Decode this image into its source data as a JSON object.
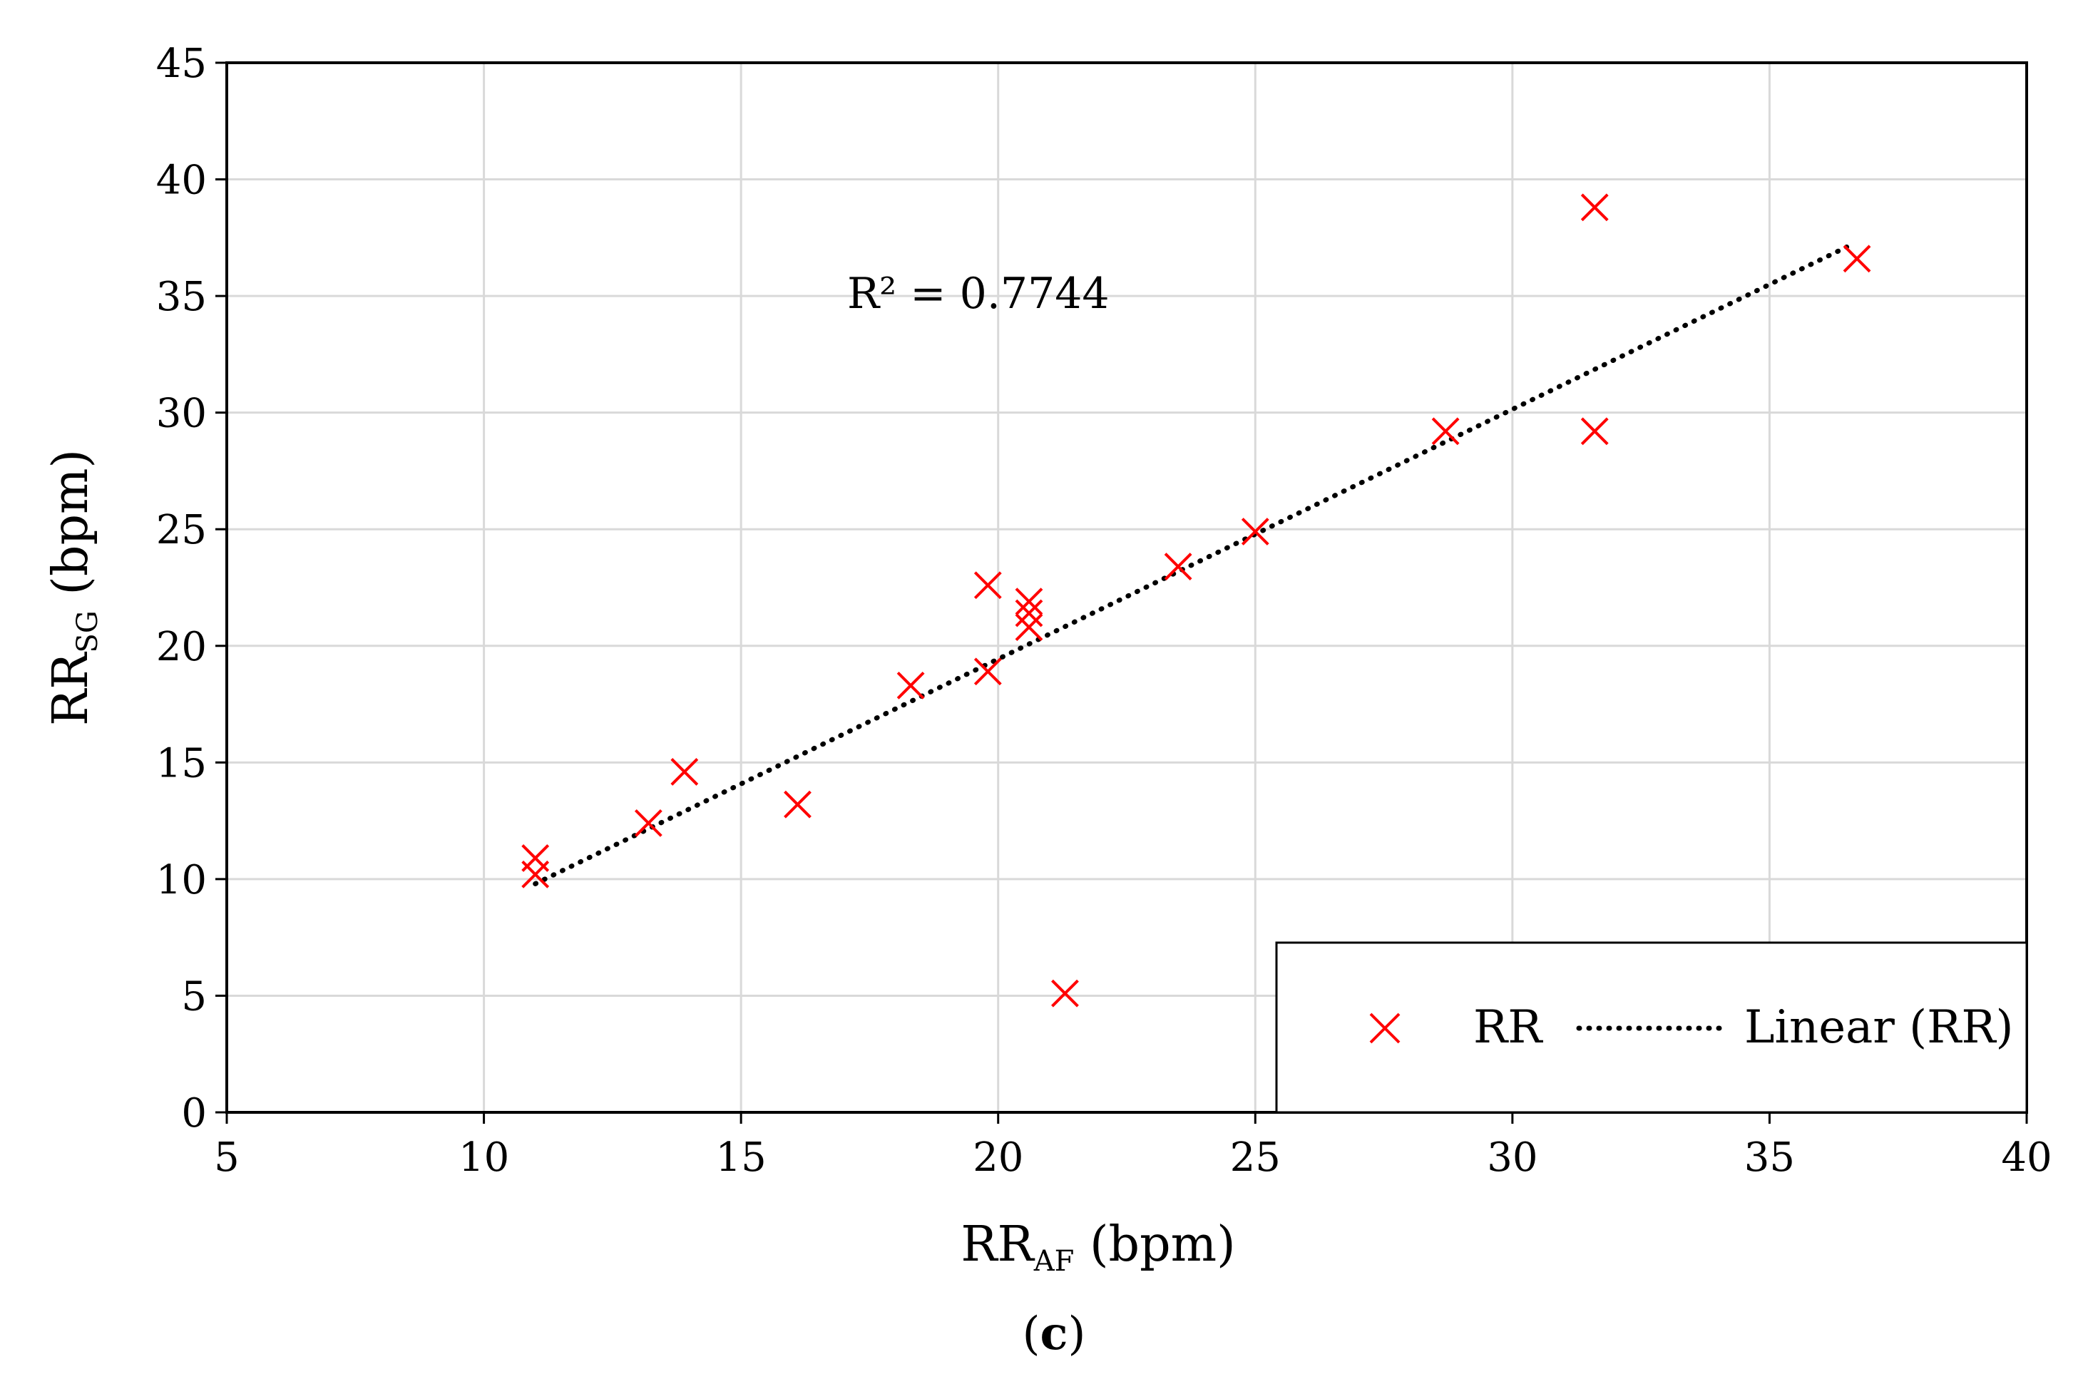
{
  "chart_data": {
    "type": "scatter",
    "x_axis": {
      "label_main": "RR",
      "label_sub": "AF",
      "label_unit": " (bpm)",
      "range": [
        5,
        40
      ],
      "ticks": [
        "5",
        "10",
        "15",
        "20",
        "25",
        "30",
        "35",
        "40"
      ]
    },
    "y_axis": {
      "label_main": "RR",
      "label_sub": "SG",
      "label_unit": " (bpm)",
      "range": [
        0,
        45
      ],
      "ticks": [
        "0",
        "5",
        "10",
        "15",
        "20",
        "25",
        "30",
        "35",
        "40",
        "45"
      ]
    },
    "grid": true,
    "series": [
      {
        "name": "RR",
        "marker": "x",
        "color": "#ff0000",
        "points": [
          {
            "x": 11.0,
            "y": 10.2
          },
          {
            "x": 11.0,
            "y": 10.9
          },
          {
            "x": 13.2,
            "y": 12.4
          },
          {
            "x": 13.9,
            "y": 14.6
          },
          {
            "x": 16.1,
            "y": 13.2
          },
          {
            "x": 18.3,
            "y": 18.3
          },
          {
            "x": 19.8,
            "y": 18.9
          },
          {
            "x": 19.8,
            "y": 22.6
          },
          {
            "x": 20.6,
            "y": 20.8
          },
          {
            "x": 20.6,
            "y": 21.4
          },
          {
            "x": 20.6,
            "y": 21.9
          },
          {
            "x": 21.3,
            "y": 5.1
          },
          {
            "x": 23.5,
            "y": 23.4
          },
          {
            "x": 25.0,
            "y": 24.9
          },
          {
            "x": 28.7,
            "y": 29.2
          },
          {
            "x": 31.6,
            "y": 29.2
          },
          {
            "x": 31.6,
            "y": 38.8
          },
          {
            "x": 36.7,
            "y": 36.6
          }
        ]
      }
    ],
    "trendline": {
      "name": "Linear (RR)",
      "style": "dotted",
      "color": "#000000",
      "x": [
        11.0,
        36.5
      ],
      "y": [
        9.8,
        37.1
      ]
    },
    "annotation": "R² = 0.7744",
    "legend": {
      "position": "bottom-right",
      "entries": [
        "RR",
        "Linear (RR)"
      ]
    },
    "caption": {
      "open": "(",
      "bold": "c",
      "close": ")"
    }
  }
}
